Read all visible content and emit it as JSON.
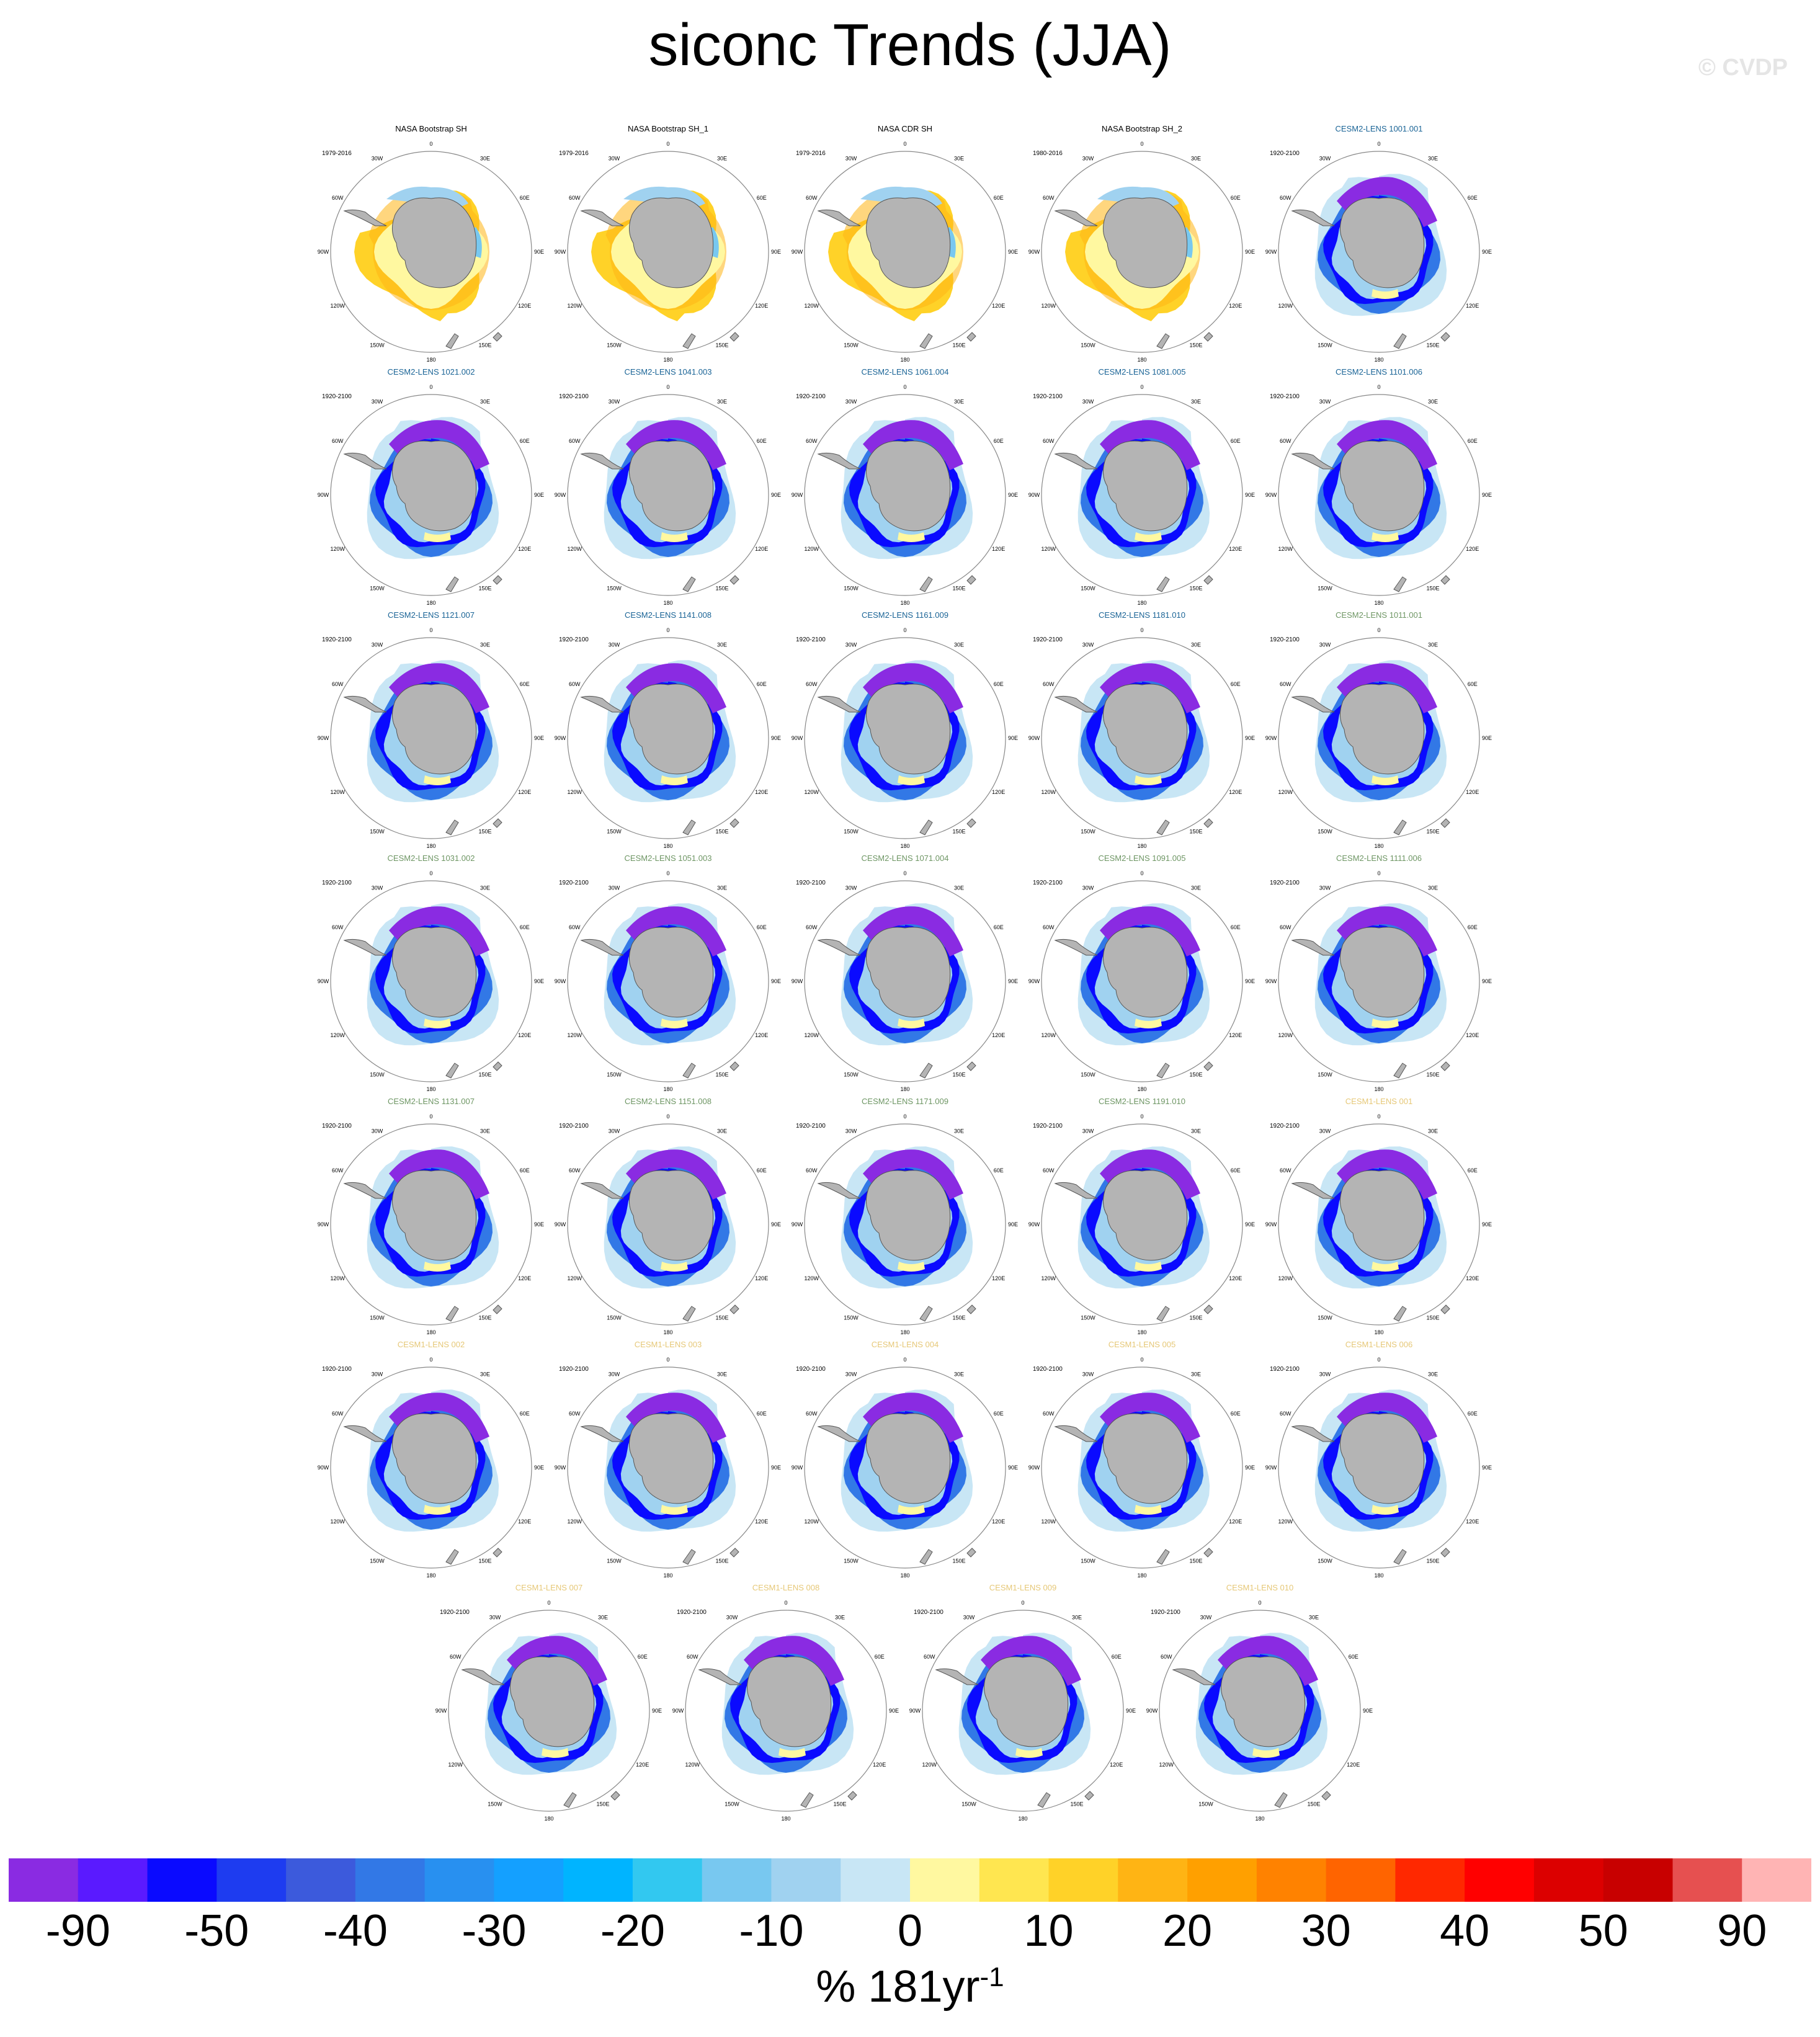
{
  "title": "siconc Trends (JJA)",
  "watermark": "© CVDP",
  "units_prefix": "% 181yr",
  "units_exponent": "-1",
  "colorbar": {
    "colors": [
      "#8a2be2",
      "#5a1aff",
      "#0a0aff",
      "#1e3cf0",
      "#3c5adc",
      "#3278e6",
      "#2890f0",
      "#14a0ff",
      "#00b4ff",
      "#32c8f0",
      "#78c8f0",
      "#a0d2f0",
      "#c8e6f5",
      "#fff8a0",
      "#ffe650",
      "#ffd228",
      "#ffb414",
      "#ffa000",
      "#ff8200",
      "#ff6400",
      "#ff2800",
      "#ff0000",
      "#dc0000",
      "#c80000",
      "#e65050",
      "#ffb4b4"
    ],
    "tick_labels": [
      "-90",
      "-50",
      "-40",
      "-30",
      "-20",
      "-10",
      "0",
      "10",
      "20",
      "30",
      "40",
      "50",
      "90"
    ]
  },
  "chart_data": {
    "type": "heatmap",
    "title": "siconc Trends (JJA)",
    "projection": "south polar stereographic",
    "colorbar_levels": [
      -90,
      -50,
      -40,
      -30,
      -20,
      -10,
      0,
      10,
      20,
      30,
      40,
      50,
      90
    ],
    "units": "% 181yr-1",
    "longitude_labels": [
      "0",
      "30E",
      "60E",
      "90E",
      "120E",
      "150E",
      "180",
      "150W",
      "120W",
      "90W",
      "60W",
      "30W"
    ],
    "panels": [
      {
        "title": "NASA Bootstrap SH",
        "period": "1979-2016",
        "title_color": "#000000",
        "pattern": "obs"
      },
      {
        "title": "NASA Bootstrap SH_1",
        "period": "1979-2016",
        "title_color": "#000000",
        "pattern": "obs"
      },
      {
        "title": "NASA CDR SH",
        "period": "1979-2016",
        "title_color": "#000000",
        "pattern": "obs"
      },
      {
        "title": "NASA Bootstrap SH_2",
        "period": "1980-2016",
        "title_color": "#000000",
        "pattern": "obs"
      },
      {
        "title": "CESM2-LENS 1001.001",
        "period": "1920-2100",
        "title_color": "#1a6496",
        "pattern": "model"
      },
      {
        "title": "CESM2-LENS 1021.002",
        "period": "1920-2100",
        "title_color": "#1a6496",
        "pattern": "model"
      },
      {
        "title": "CESM2-LENS 1041.003",
        "period": "1920-2100",
        "title_color": "#1a6496",
        "pattern": "model"
      },
      {
        "title": "CESM2-LENS 1061.004",
        "period": "1920-2100",
        "title_color": "#1a6496",
        "pattern": "model"
      },
      {
        "title": "CESM2-LENS 1081.005",
        "period": "1920-2100",
        "title_color": "#1a6496",
        "pattern": "model"
      },
      {
        "title": "CESM2-LENS 1101.006",
        "period": "1920-2100",
        "title_color": "#1a6496",
        "pattern": "model"
      },
      {
        "title": "CESM2-LENS 1121.007",
        "period": "1920-2100",
        "title_color": "#1a6496",
        "pattern": "model"
      },
      {
        "title": "CESM2-LENS 1141.008",
        "period": "1920-2100",
        "title_color": "#1a6496",
        "pattern": "model"
      },
      {
        "title": "CESM2-LENS 1161.009",
        "period": "1920-2100",
        "title_color": "#1a6496",
        "pattern": "model"
      },
      {
        "title": "CESM2-LENS 1181.010",
        "period": "1920-2100",
        "title_color": "#1a6496",
        "pattern": "model"
      },
      {
        "title": "CESM2-LENS 1011.001",
        "period": "1920-2100",
        "title_color": "#6e9664",
        "pattern": "model"
      },
      {
        "title": "CESM2-LENS 1031.002",
        "period": "1920-2100",
        "title_color": "#6e9664",
        "pattern": "model"
      },
      {
        "title": "CESM2-LENS 1051.003",
        "period": "1920-2100",
        "title_color": "#6e9664",
        "pattern": "model"
      },
      {
        "title": "CESM2-LENS 1071.004",
        "period": "1920-2100",
        "title_color": "#6e9664",
        "pattern": "model"
      },
      {
        "title": "CESM2-LENS 1091.005",
        "period": "1920-2100",
        "title_color": "#6e9664",
        "pattern": "model"
      },
      {
        "title": "CESM2-LENS 1111.006",
        "period": "1920-2100",
        "title_color": "#6e9664",
        "pattern": "model"
      },
      {
        "title": "CESM2-LENS 1131.007",
        "period": "1920-2100",
        "title_color": "#6e9664",
        "pattern": "model"
      },
      {
        "title": "CESM2-LENS 1151.008",
        "period": "1920-2100",
        "title_color": "#6e9664",
        "pattern": "model"
      },
      {
        "title": "CESM2-LENS 1171.009",
        "period": "1920-2100",
        "title_color": "#6e9664",
        "pattern": "model"
      },
      {
        "title": "CESM2-LENS 1191.010",
        "period": "1920-2100",
        "title_color": "#6e9664",
        "pattern": "model"
      },
      {
        "title": "CESM1-LENS 001",
        "period": "1920-2100",
        "title_color": "#e6c878",
        "pattern": "model"
      },
      {
        "title": "CESM1-LENS 002",
        "period": "1920-2100",
        "title_color": "#e6c878",
        "pattern": "model"
      },
      {
        "title": "CESM1-LENS 003",
        "period": "1920-2100",
        "title_color": "#e6c878",
        "pattern": "model"
      },
      {
        "title": "CESM1-LENS 004",
        "period": "1920-2100",
        "title_color": "#e6c878",
        "pattern": "model"
      },
      {
        "title": "CESM1-LENS 005",
        "period": "1920-2100",
        "title_color": "#e6c878",
        "pattern": "model"
      },
      {
        "title": "CESM1-LENS 006",
        "period": "1920-2100",
        "title_color": "#e6c878",
        "pattern": "model"
      },
      {
        "title": "CESM1-LENS 007",
        "period": "1920-2100",
        "title_color": "#e6c878",
        "pattern": "model"
      },
      {
        "title": "CESM1-LENS 008",
        "period": "1920-2100",
        "title_color": "#e6c878",
        "pattern": "model"
      },
      {
        "title": "CESM1-LENS 009",
        "period": "1920-2100",
        "title_color": "#e6c878",
        "pattern": "model"
      },
      {
        "title": "CESM1-LENS 010",
        "period": "1920-2100",
        "title_color": "#e6c878",
        "pattern": "model"
      }
    ]
  }
}
